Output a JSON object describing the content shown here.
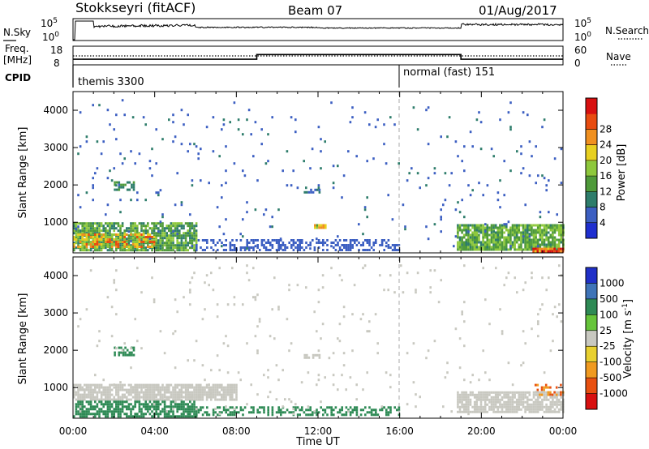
{
  "header": {
    "station": "Stokkseyri (fitACF)",
    "beam": "Beam 07",
    "date": "01/Aug/2017"
  },
  "noise_panel": {
    "left_label": "N.Sky",
    "left_ticks": [
      "10^5",
      "10^0"
    ],
    "right_label": "N.Search",
    "right_ticks": [
      "10^5",
      "10^0"
    ]
  },
  "freq_panel": {
    "left_label": "Freq.",
    "left_unit": "[MHz]",
    "left_ticks": [
      "18",
      "8"
    ],
    "right_label": "Nave",
    "right_ticks": [
      "60",
      "0"
    ],
    "cpid_label": "CPID",
    "modes": [
      {
        "name": "themis 3300",
        "start_hour": 0
      },
      {
        "name": "normal (fast) 151",
        "start_hour": 16
      }
    ],
    "freq_steps": [
      {
        "from": 0,
        "to": 9,
        "value_mhz": 11.0
      },
      {
        "from": 9,
        "to": 19,
        "value_mhz": 13.5
      },
      {
        "from": 19,
        "to": 24,
        "value_mhz": 11.0
      }
    ]
  },
  "colors": {
    "power": [
      "#1f2fd0",
      "#3c5fc2",
      "#2e7d6b",
      "#4f9a3a",
      "#8ec83c",
      "#e8d020",
      "#f09020",
      "#e84c10",
      "#d81010"
    ],
    "velocity": [
      "#2030c8",
      "#3f74b8",
      "#2e8a55",
      "#66c43a",
      "#c8c8c0",
      "#e8d030",
      "#f09a20",
      "#e85010",
      "#d81010"
    ]
  },
  "chart_data": [
    {
      "type": "heatmap",
      "name": "power",
      "xlabel": "",
      "ylabel": "Slant Range [km]",
      "x_range_hours": [
        0,
        24
      ],
      "ylim": [
        180,
        4500
      ],
      "y_ticks": [
        "1000",
        "2000",
        "3000",
        "4000"
      ],
      "colorbar_label": "Power [dB]",
      "colorbar_ticks": [
        "4",
        "8",
        "12",
        "16",
        "20",
        "24",
        "28"
      ],
      "colorbar_range": [
        0,
        30
      ],
      "regions": [
        {
          "x": [
            0,
            6.0
          ],
          "y": [
            250,
            1000
          ],
          "level": 12,
          "density": 0.85
        },
        {
          "x": [
            0,
            4.0
          ],
          "y": [
            350,
            700
          ],
          "level": 20,
          "density": 0.55
        },
        {
          "x": [
            6.0,
            16.0
          ],
          "y": [
            250,
            550
          ],
          "level": 5,
          "density": 0.45
        },
        {
          "x": [
            18.8,
            24
          ],
          "y": [
            250,
            950
          ],
          "level": 13,
          "density": 0.85
        },
        {
          "x": [
            22.5,
            24
          ],
          "y": [
            200,
            320
          ],
          "level": 26,
          "density": 0.9
        },
        {
          "x": [
            11.8,
            12.4
          ],
          "y": [
            850,
            950
          ],
          "level": 18,
          "density": 0.9
        },
        {
          "x": [
            11.3,
            12.1
          ],
          "y": [
            1800,
            1900
          ],
          "level": 6,
          "density": 0.7
        },
        {
          "x": [
            2.0,
            3.0
          ],
          "y": [
            1900,
            2100
          ],
          "level": 9,
          "density": 0.6
        },
        {
          "x": [
            0,
            24
          ],
          "y": [
            300,
            4300
          ],
          "level": 6,
          "density": 0.02
        }
      ]
    },
    {
      "type": "heatmap",
      "name": "velocity",
      "xlabel": "Time UT",
      "ylabel": "Slant Range [km]",
      "x_tick_labels": [
        "00:00",
        "04:00",
        "08:00",
        "12:00",
        "16:00",
        "20:00",
        "00:00"
      ],
      "x_range_hours": [
        0,
        24
      ],
      "ylim": [
        180,
        4500
      ],
      "y_ticks": [
        "1000",
        "2000",
        "3000",
        "4000"
      ],
      "colorbar_label": "Velocity [m s^-1]",
      "colorbar_ticks": [
        "1000",
        "500",
        "100",
        "25",
        "-25",
        "-100",
        "-500",
        "-1000"
      ],
      "colorbar_range": [
        -1200,
        1200
      ],
      "regions": [
        {
          "x": [
            0,
            8.0
          ],
          "y": [
            700,
            1100
          ],
          "level": 0,
          "density": 0.85
        },
        {
          "x": [
            0,
            6.0
          ],
          "y": [
            250,
            650
          ],
          "level": 150,
          "density": 0.7
        },
        {
          "x": [
            6.0,
            16.0
          ],
          "y": [
            250,
            500
          ],
          "level": 120,
          "density": 0.45
        },
        {
          "x": [
            18.8,
            24
          ],
          "y": [
            350,
            900
          ],
          "level": 0,
          "density": 0.8
        },
        {
          "x": [
            22.5,
            24
          ],
          "y": [
            800,
            1100
          ],
          "level": -300,
          "density": 0.3
        },
        {
          "x": [
            11.3,
            12.1
          ],
          "y": [
            1800,
            1900
          ],
          "level": 0,
          "density": 0.7
        },
        {
          "x": [
            2.0,
            3.0
          ],
          "y": [
            1900,
            2100
          ],
          "level": 150,
          "density": 0.6
        },
        {
          "x": [
            0,
            24
          ],
          "y": [
            300,
            4300
          ],
          "level": 0,
          "density": 0.02
        }
      ]
    }
  ]
}
